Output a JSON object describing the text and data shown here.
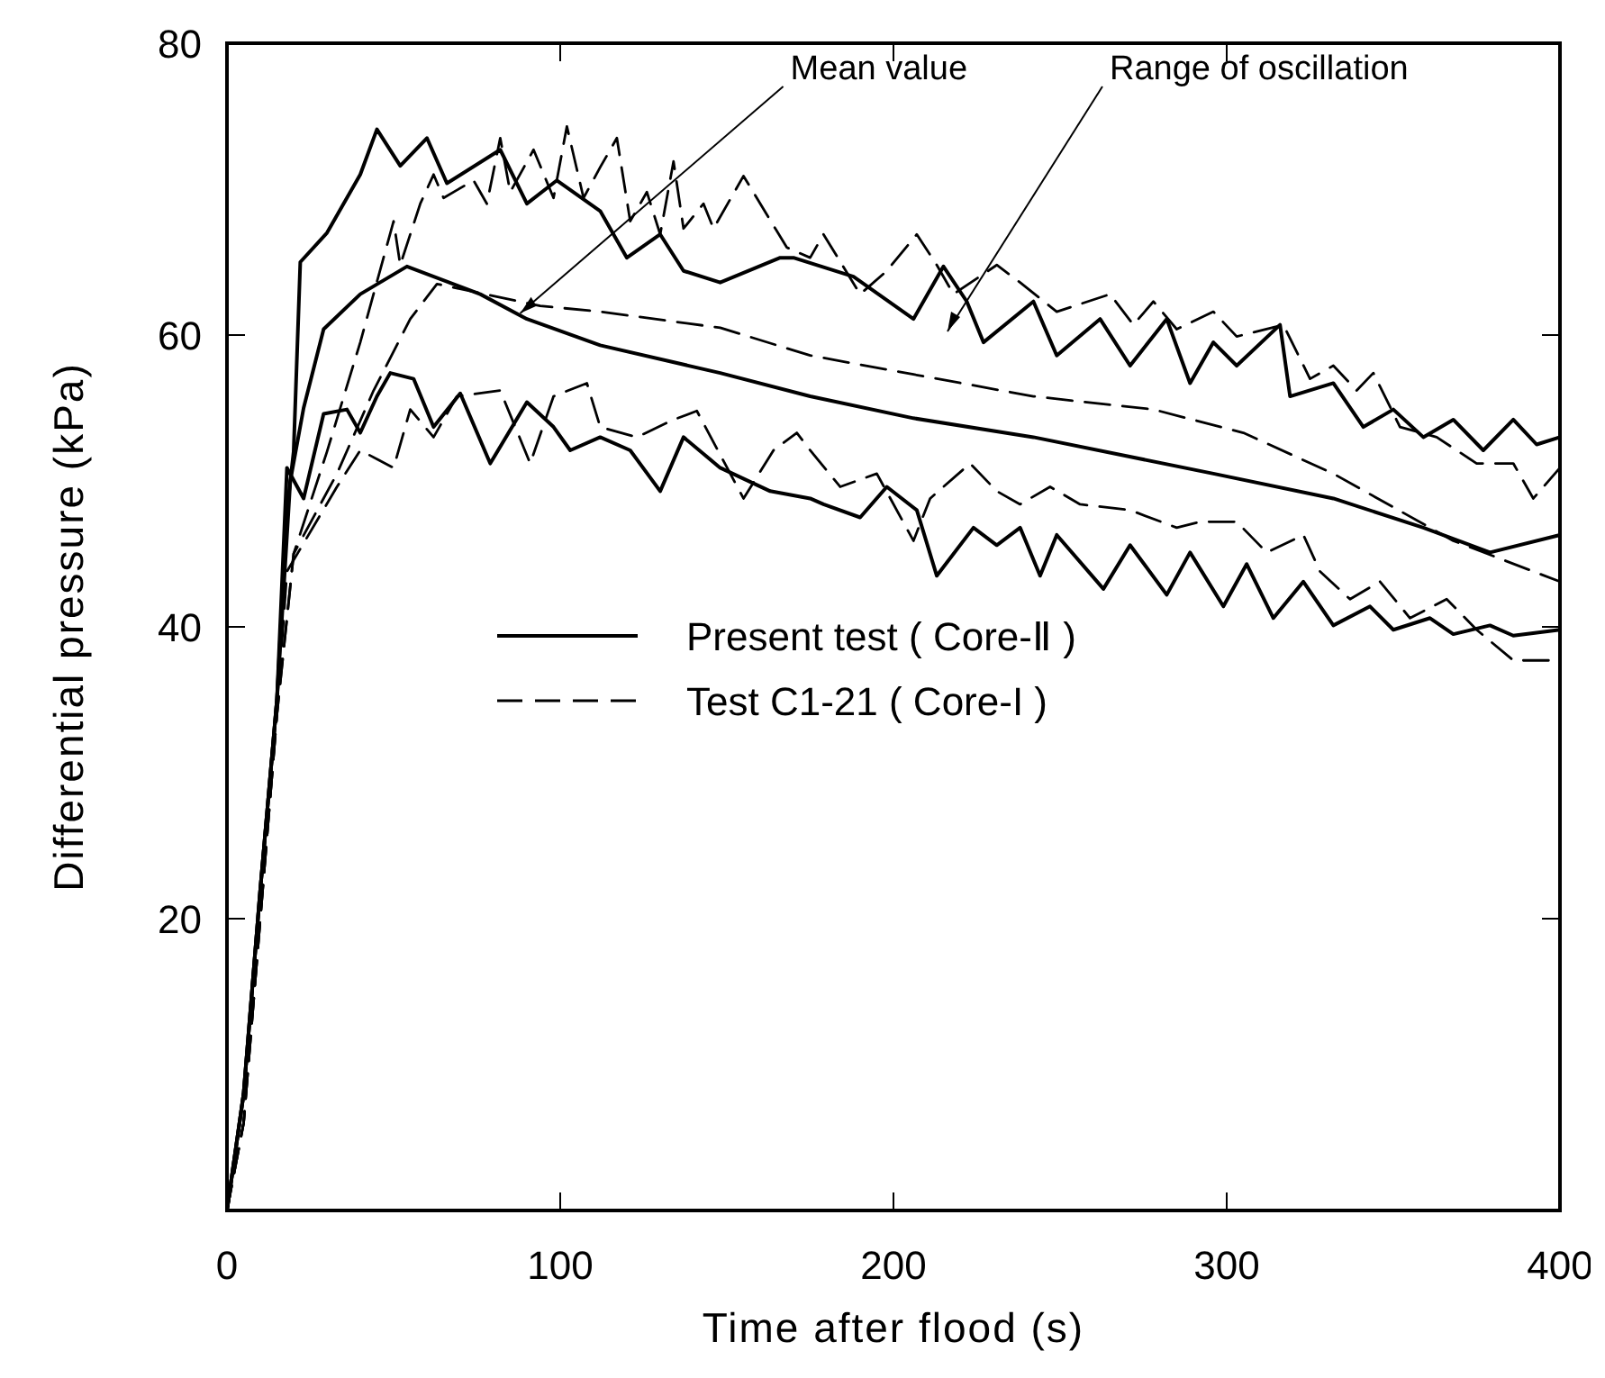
{
  "chart_data": {
    "type": "line",
    "xlabel": "Time after flood (s)",
    "ylabel": "Differential pressure (kPa)",
    "xlim": [
      0,
      400
    ],
    "xticks": [
      0,
      100,
      200,
      300,
      400
    ],
    "ylim": [
      0,
      80
    ],
    "yticks": [
      20,
      40,
      60,
      80
    ],
    "grid": false,
    "legend": "center",
    "marker": "none",
    "annotations": [
      {
        "text": "Mean value",
        "x": 88,
        "y": 61.5
      },
      "Range of oscillation"
    ],
    "series": [
      {
        "name": "Present test ( Core-Ⅱ )",
        "color": "#000000",
        "line_style": "solid",
        "x": [
          0,
          5,
          10,
          15,
          18,
          20,
          22,
          30,
          40,
          45,
          52,
          60,
          66,
          82,
          90,
          99,
          112,
          120,
          130,
          137,
          148,
          166,
          170,
          188,
          206,
          215,
          222,
          227,
          242,
          249,
          262,
          271,
          282,
          289,
          296,
          303,
          316,
          319,
          332,
          341,
          350,
          359,
          368,
          377,
          386,
          393,
          400
        ],
        "values": [
          0,
          8,
          22,
          35,
          48,
          52,
          65,
          67,
          71,
          74.1,
          71.6,
          73.5,
          70.4,
          72.7,
          69,
          70.6,
          68.5,
          65.3,
          66.9,
          64.4,
          63.6,
          65.3,
          65.3,
          64,
          61.1,
          64.7,
          62.3,
          59.5,
          62.3,
          58.6,
          61.1,
          57.9,
          61.1,
          56.7,
          59.5,
          57.9,
          60.7,
          55.8,
          56.7,
          53.7,
          54.9,
          53,
          54.2,
          52.1,
          54.2,
          52.5,
          53
        ]
      },
      {
        "color": "#000000",
        "line_style": "solid",
        "x": [
          0,
          5,
          10,
          15,
          19,
          23,
          29,
          40,
          54,
          76,
          90,
          112,
          148,
          175,
          206,
          242,
          296,
          332,
          359,
          379,
          400
        ],
        "values": [
          0,
          8,
          22,
          35,
          50,
          55,
          60.4,
          62.8,
          64.7,
          62.8,
          61.1,
          59.3,
          57.4,
          55.8,
          54.3,
          53,
          50.5,
          48.8,
          46.8,
          45.1,
          46.3
        ]
      },
      {
        "color": "#000000",
        "line_style": "solid",
        "x": [
          0,
          5,
          10,
          15,
          18,
          23,
          29,
          36,
          40,
          45,
          49,
          56,
          62,
          70,
          79,
          90,
          98,
          103,
          112,
          121,
          130,
          137,
          148,
          163,
          175,
          179,
          190,
          198,
          207,
          213,
          224,
          231,
          238,
          244,
          249,
          263,
          271,
          282,
          289,
          299,
          306,
          314,
          323,
          332,
          343,
          350,
          361,
          368,
          379,
          386,
          400
        ],
        "values": [
          0,
          8,
          22,
          35,
          50.9,
          48.8,
          54.6,
          54.9,
          53.3,
          55.8,
          57.4,
          57,
          53.7,
          56,
          51.2,
          55.4,
          53.7,
          52.1,
          53,
          52.1,
          49.3,
          53,
          50.9,
          49.3,
          48.8,
          48.4,
          47.5,
          49.6,
          48,
          43.5,
          46.8,
          45.6,
          46.8,
          43.5,
          46.3,
          42.6,
          45.6,
          42.2,
          45.1,
          41.4,
          44.3,
          40.6,
          43.1,
          40.1,
          41.4,
          39.8,
          40.6,
          39.5,
          40.1,
          39.4,
          39.8
        ]
      },
      {
        "name": "Test C1-21 ( Core-I )",
        "color": "#000000",
        "line_style": "dashed",
        "x": [
          0,
          5,
          10,
          15,
          20,
          30,
          40,
          50,
          52,
          58,
          62,
          65,
          74,
          78,
          82,
          85,
          92,
          98,
          102,
          107,
          112,
          117,
          121,
          126,
          130,
          134,
          137,
          143,
          146,
          155,
          168,
          175,
          179,
          190,
          198,
          207,
          213,
          218,
          231,
          238,
          249,
          265,
          272,
          278,
          285,
          296,
          303,
          317,
          325,
          332,
          339,
          344,
          352,
          363,
          375,
          386,
          392,
          400
        ],
        "values": [
          0,
          6,
          20,
          34,
          45,
          52,
          59.5,
          67.8,
          64.8,
          69,
          71,
          69.4,
          70.6,
          69,
          73.5,
          69.8,
          72.7,
          69.4,
          74.3,
          69.4,
          71.5,
          73.5,
          67.8,
          69.8,
          66.9,
          71.9,
          67.3,
          69,
          67.3,
          70.9,
          66,
          65.3,
          66.9,
          62.8,
          64.4,
          66.9,
          64.8,
          62.8,
          64.8,
          63.6,
          61.6,
          62.8,
          60.7,
          62.3,
          60.4,
          61.6,
          59.9,
          60.7,
          57,
          57.9,
          56.2,
          57.4,
          53.7,
          53,
          51.2,
          51.2,
          48.8,
          50.9
        ]
      },
      {
        "color": "#000000",
        "line_style": "dashed",
        "x": [
          0,
          5,
          10,
          15,
          20,
          33,
          44,
          55,
          63,
          94,
          112,
          148,
          175,
          206,
          242,
          278,
          305,
          332,
          368,
          400
        ],
        "values": [
          0,
          6,
          20,
          34,
          45,
          50.5,
          56.2,
          61.1,
          63.5,
          62,
          61.6,
          60.5,
          58.6,
          57.3,
          55.8,
          54.9,
          53.3,
          50.5,
          45.9,
          43.1
        ]
      },
      {
        "color": "#000000",
        "line_style": "dashed",
        "x": [
          0,
          5,
          10,
          15,
          18,
          33,
          40,
          50,
          55,
          62,
          69,
          82,
          91,
          98,
          108,
          112,
          123,
          134,
          141,
          155,
          164,
          171,
          175,
          184,
          195,
          206,
          211,
          223,
          231,
          238,
          247,
          256,
          271,
          285,
          292,
          303,
          312,
          323,
          328,
          337,
          346,
          355,
          366,
          375,
          386,
          400
        ],
        "values": [
          0,
          6,
          20,
          34,
          43.8,
          49.6,
          52.1,
          50.9,
          54.9,
          53,
          55.8,
          56.2,
          51.2,
          55.8,
          56.7,
          53.7,
          53,
          54.2,
          54.8,
          48.8,
          52.1,
          53.3,
          52.1,
          49.6,
          50.5,
          45.9,
          48.8,
          51.2,
          49.3,
          48.4,
          49.6,
          48.4,
          48,
          46.8,
          47.2,
          47.2,
          45.1,
          46.3,
          43.8,
          41.9,
          43.1,
          40.6,
          41.9,
          39.8,
          37.7,
          37.7
        ]
      }
    ]
  }
}
